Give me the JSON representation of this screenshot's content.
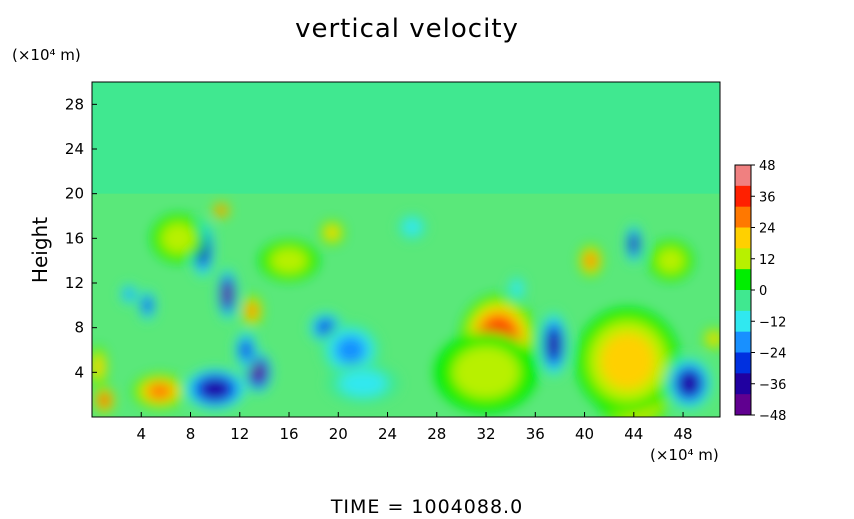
{
  "chart_data": {
    "type": "heatmap",
    "title": "vertical velocity",
    "ylabel": "Height",
    "yunit": "(×10⁴ m)",
    "xunit": "(×10⁴ m)",
    "footer": "TIME  =  1004088.0",
    "xlim": [
      0,
      51
    ],
    "ylim": [
      0,
      30
    ],
    "x_ticks": [
      4,
      8,
      12,
      16,
      20,
      24,
      28,
      32,
      36,
      40,
      44,
      48
    ],
    "x_tick_labels": [
      "4",
      "8",
      "12",
      "16",
      "20",
      "24",
      "28",
      "32",
      "36",
      "40",
      "44",
      "48"
    ],
    "y_ticks": [
      4,
      8,
      12,
      16,
      20,
      24,
      28
    ],
    "y_tick_labels": [
      "4",
      "8",
      "12",
      "16",
      "20",
      "24",
      "28"
    ],
    "colorbar": {
      "min": -48,
      "max": 48,
      "ticks": [
        48,
        36,
        24,
        12,
        0,
        -12,
        -24,
        -36,
        -48
      ],
      "tick_labels": [
        "48",
        "36",
        "24",
        "12",
        "0",
        "−12",
        "−24",
        "−36",
        "−48"
      ],
      "colors": [
        "#f08080",
        "#ff2000",
        "#ff7800",
        "#ffd000",
        "#b8f000",
        "#00ee00",
        "#40e890",
        "#30e8f0",
        "#1890ff",
        "#0030e0",
        "#2000a0",
        "#600090"
      ]
    },
    "background_value": 0,
    "features": [
      {
        "x": 1,
        "y": 1.5,
        "value": 40,
        "rx": 0.7,
        "ry": 1.0
      },
      {
        "x": 0.5,
        "y": 4.5,
        "value": 22,
        "rx": 0.6,
        "ry": 1.5
      },
      {
        "x": 5.5,
        "y": 2.3,
        "value": 32,
        "rx": 1.8,
        "ry": 1.3
      },
      {
        "x": 4.5,
        "y": 10,
        "value": -30,
        "rx": 0.6,
        "ry": 1.2
      },
      {
        "x": 3,
        "y": 11,
        "value": -18,
        "rx": 0.6,
        "ry": 0.8
      },
      {
        "x": 9,
        "y": 15,
        "value": -34,
        "rx": 0.8,
        "ry": 2.2
      },
      {
        "x": 11,
        "y": 11,
        "value": -46,
        "rx": 0.7,
        "ry": 2.0
      },
      {
        "x": 10,
        "y": 2.5,
        "value": -32,
        "rx": 2.0,
        "ry": 1.5
      },
      {
        "x": 13.5,
        "y": 4,
        "value": -40,
        "rx": 0.9,
        "ry": 1.5
      },
      {
        "x": 12.5,
        "y": 6,
        "value": -28,
        "rx": 0.8,
        "ry": 1.5
      },
      {
        "x": 13,
        "y": 9.5,
        "value": 28,
        "rx": 0.7,
        "ry": 1.2
      },
      {
        "x": 10.5,
        "y": 18.5,
        "value": 34,
        "rx": 0.6,
        "ry": 0.6
      },
      {
        "x": 19.5,
        "y": 16.5,
        "value": 22,
        "rx": 0.8,
        "ry": 0.9
      },
      {
        "x": 19,
        "y": 8,
        "value": -28,
        "rx": 1.2,
        "ry": 1.2
      },
      {
        "x": 21,
        "y": 6,
        "value": -18,
        "rx": 2.0,
        "ry": 2.0
      },
      {
        "x": 22,
        "y": 3,
        "value": -14,
        "rx": 2.5,
        "ry": 1.5
      },
      {
        "x": 33,
        "y": 7,
        "value": 40,
        "rx": 2.6,
        "ry": 3.3
      },
      {
        "x": 32,
        "y": 4,
        "value": 16,
        "rx": 3.5,
        "ry": 3.0
      },
      {
        "x": 34.5,
        "y": 11.5,
        "value": -14,
        "rx": 0.6,
        "ry": 1.0
      },
      {
        "x": 37.5,
        "y": 6.5,
        "value": -38,
        "rx": 1.0,
        "ry": 2.5
      },
      {
        "x": 40.5,
        "y": 14,
        "value": 28,
        "rx": 0.8,
        "ry": 1.2
      },
      {
        "x": 44,
        "y": 3,
        "value": 46,
        "rx": 2.8,
        "ry": 3.3
      },
      {
        "x": 43.5,
        "y": 5,
        "value": 22,
        "rx": 3.5,
        "ry": 4.0
      },
      {
        "x": 44,
        "y": 15.5,
        "value": -36,
        "rx": 0.6,
        "ry": 1.5
      },
      {
        "x": 48.5,
        "y": 3,
        "value": -36,
        "rx": 1.6,
        "ry": 2.0
      },
      {
        "x": 50.5,
        "y": 7,
        "value": 18,
        "rx": 0.7,
        "ry": 0.8
      },
      {
        "x": 26,
        "y": 17,
        "value": -10,
        "rx": 1.0,
        "ry": 1.0
      },
      {
        "x": 16,
        "y": 14,
        "value": 12,
        "rx": 2.0,
        "ry": 1.5
      },
      {
        "x": 47,
        "y": 14,
        "value": 12,
        "rx": 1.5,
        "ry": 1.5
      },
      {
        "x": 7,
        "y": 16,
        "value": 10,
        "rx": 1.8,
        "ry": 1.8
      }
    ]
  }
}
